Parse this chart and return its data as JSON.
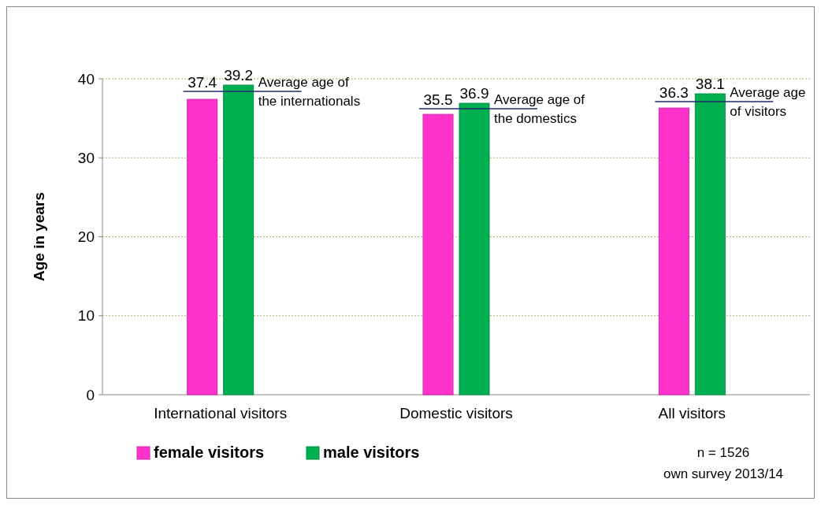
{
  "chart_data": {
    "type": "bar",
    "ylabel": "Age in years",
    "categories": [
      "International visitors",
      "Domestic visitors",
      "All visitors"
    ],
    "series": [
      {
        "name": "female visitors",
        "color": "#ff33cc",
        "values": [
          37.4,
          35.5,
          36.3
        ]
      },
      {
        "name": "male visitors",
        "color": "#00b050",
        "values": [
          39.2,
          36.9,
          38.1
        ]
      }
    ],
    "ylim": [
      0,
      40
    ],
    "yticks": [
      0,
      10,
      20,
      30,
      40
    ],
    "grid": "y",
    "legend": "bottom",
    "data_labels": true,
    "annotations": [
      {
        "text": "Average age of the internationals",
        "x": "International visitors",
        "y": 38.4
      },
      {
        "text": "Average age of the domestics",
        "x": "Domestic visitors",
        "y": 36.2
      },
      {
        "text": "Average age of visitors",
        "x": "All visitors",
        "y": 37.1
      },
      "n = 1526",
      "own survey 2013/14"
    ]
  }
}
